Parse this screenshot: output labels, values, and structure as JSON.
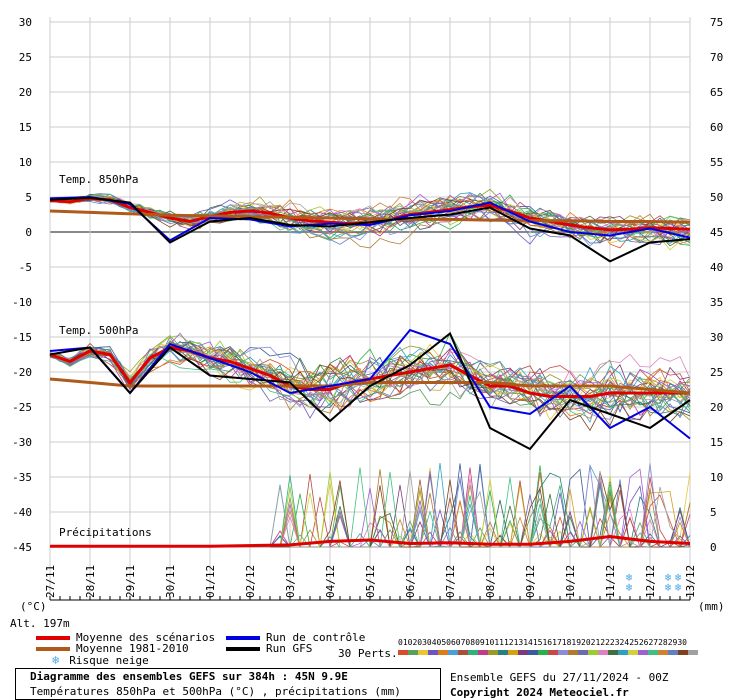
{
  "chart_data": {
    "type": "line",
    "title": "Diagramme des ensembles GEFS sur 384h : 45N 9.9E",
    "subtitle": "Températures 850hPa et 500hPa (°C) , précipitations (mm)",
    "left_axis": {
      "unit_label": "(°C)",
      "ticks": [
        30,
        25,
        20,
        15,
        10,
        5,
        0,
        -5,
        -10,
        -15,
        -20,
        -25,
        -30,
        -35,
        -40,
        -45
      ],
      "range": [
        -45,
        30
      ]
    },
    "right_axis": {
      "unit_label": "(mm)",
      "ticks": [
        75,
        70,
        65,
        60,
        55,
        50,
        45,
        40,
        35,
        30,
        25,
        20,
        15,
        10,
        5,
        0
      ],
      "range": [
        0,
        75
      ]
    },
    "x_ticks": [
      "27/11",
      "28/11",
      "29/11",
      "30/11",
      "01/12",
      "02/12",
      "03/12",
      "04/12",
      "05/12",
      "06/12",
      "07/12",
      "08/12",
      "09/12",
      "10/12",
      "11/12",
      "12/12",
      "13/12"
    ],
    "altitude_label": "Alt. 197m",
    "panel_labels": [
      "Temp. 850hPa",
      "Temp. 500hPa",
      "Précipitations"
    ],
    "series": [
      {
        "name": "Moyenne des scénarios",
        "panel": "850hPa",
        "color": "#e00000",
        "x": [
          0,
          0.5,
          1,
          1.5,
          2,
          2.5,
          3,
          3.5,
          4,
          4.5,
          5,
          5.5,
          6,
          6.5,
          7,
          7.5,
          8,
          8.5,
          9,
          9.5,
          10,
          10.5,
          11,
          11.5,
          12,
          12.5,
          13,
          13.5,
          14,
          14.5,
          15,
          15.5,
          16
        ],
        "values": [
          4.5,
          4.3,
          4.8,
          4.6,
          3.5,
          2.8,
          2.0,
          1.5,
          2.2,
          2.8,
          3.0,
          2.7,
          2.0,
          1.6,
          1.4,
          1.2,
          1.3,
          1.8,
          2.5,
          2.8,
          3.2,
          3.6,
          3.8,
          3.0,
          2.0,
          1.5,
          1.0,
          0.6,
          0.3,
          0.4,
          0.6,
          0.5,
          0.4
        ]
      },
      {
        "name": "Moyenne 1981-2010",
        "panel": "850hPa",
        "color": "#b05a1a",
        "x": [
          0,
          1,
          2,
          3,
          4,
          5,
          6,
          7,
          8,
          9,
          10,
          11,
          12,
          13,
          14,
          15,
          16
        ],
        "values": [
          3.0,
          2.8,
          2.6,
          2.4,
          2.3,
          2.2,
          2.1,
          2.0,
          1.9,
          1.8,
          1.8,
          1.7,
          1.6,
          1.6,
          1.5,
          1.5,
          1.4
        ]
      },
      {
        "name": "Run de contrôle",
        "panel": "850hPa",
        "color": "#0000e0",
        "x": [
          0,
          1,
          2,
          3,
          4,
          5,
          6,
          7,
          8,
          9,
          10,
          11,
          12,
          13,
          14,
          15,
          16
        ],
        "values": [
          4.8,
          5.0,
          4.0,
          -1.2,
          2.0,
          1.8,
          0.8,
          1.2,
          1.0,
          2.4,
          3.0,
          4.2,
          1.5,
          0.0,
          -0.5,
          0.5,
          -0.8
        ]
      },
      {
        "name": "Run GFS",
        "panel": "850hPa",
        "color": "#000000",
        "x": [
          0,
          1,
          2,
          3,
          4,
          5,
          6,
          7,
          8,
          9,
          10,
          11,
          12,
          13,
          14,
          15,
          16
        ],
        "values": [
          4.6,
          4.9,
          4.2,
          -1.5,
          1.5,
          2.0,
          1.0,
          0.8,
          1.4,
          2.0,
          2.5,
          3.5,
          0.5,
          -0.5,
          -4.2,
          -1.5,
          -1.0
        ]
      },
      {
        "name": "Moyenne des scénarios",
        "panel": "500hPa",
        "color": "#e00000",
        "x": [
          0,
          0.5,
          1,
          1.5,
          2,
          2.5,
          3,
          3.5,
          4,
          4.5,
          5,
          5.5,
          6,
          6.5,
          7,
          7.5,
          8,
          8.5,
          9,
          9.5,
          10,
          10.5,
          11,
          11.5,
          12,
          12.5,
          13,
          13.5,
          14,
          14.5,
          15,
          15.5,
          16
        ],
        "values": [
          -17.5,
          -18.5,
          -17.0,
          -17.5,
          -21.5,
          -18.0,
          -16.5,
          -17.0,
          -18.0,
          -18.5,
          -19.5,
          -20.5,
          -22.0,
          -22.5,
          -22.5,
          -21.5,
          -21.0,
          -20.5,
          -20.0,
          -19.5,
          -19.0,
          -20.5,
          -22.0,
          -22.0,
          -23.0,
          -23.5,
          -23.5,
          -23.5,
          -23.0,
          -23.0,
          -23.0,
          -23.0,
          -23.0
        ]
      },
      {
        "name": "Moyenne 1981-2010",
        "panel": "500hPa",
        "color": "#b05a1a",
        "x": [
          0,
          1,
          2,
          3,
          4,
          5,
          6,
          7,
          8,
          9,
          10,
          11,
          12,
          13,
          14,
          15,
          16
        ],
        "values": [
          -21.0,
          -21.5,
          -22.0,
          -22.0,
          -22.0,
          -22.0,
          -22.0,
          -22.0,
          -21.5,
          -21.5,
          -21.5,
          -21.5,
          -22.0,
          -22.0,
          -22.0,
          -22.5,
          -23.0
        ]
      },
      {
        "name": "Run de contrôle",
        "panel": "500hPa",
        "color": "#0000e0",
        "x": [
          0,
          1,
          2,
          3,
          4,
          5,
          6,
          7,
          8,
          9,
          10,
          11,
          12,
          13,
          14,
          15,
          16
        ],
        "values": [
          -17.0,
          -16.5,
          -23.0,
          -16.0,
          -18.0,
          -20.0,
          -23.0,
          -22.0,
          -21.0,
          -14.0,
          -16.0,
          -25.0,
          -26.0,
          -22.0,
          -28.0,
          -25.0,
          -29.5
        ]
      },
      {
        "name": "Run GFS",
        "panel": "500hPa",
        "color": "#000000",
        "x": [
          0,
          1,
          2,
          3,
          4,
          5,
          6,
          7,
          8,
          9,
          10,
          11,
          12,
          13,
          14,
          15,
          16
        ],
        "values": [
          -17.5,
          -16.5,
          -23.0,
          -16.5,
          -20.5,
          -21.0,
          -21.5,
          -27.0,
          -22.0,
          -19.0,
          -14.5,
          -28.0,
          -31.0,
          -24.0,
          -26.0,
          -28.0,
          -24.0
        ]
      },
      {
        "name": "Moyenne des scénarios",
        "panel": "precip",
        "color": "#e00000",
        "x": [
          0,
          2,
          4,
          6,
          7,
          8,
          9,
          10,
          11,
          12,
          13,
          14,
          15,
          16
        ],
        "values": [
          0.1,
          0.1,
          0.1,
          0.3,
          0.8,
          1.0,
          0.5,
          0.6,
          0.4,
          0.4,
          0.8,
          1.5,
          0.8,
          0.5
        ]
      }
    ],
    "perturbation_label": "30 Perts.",
    "perturbation_numbers": [
      "01",
      "02",
      "03",
      "04",
      "05",
      "06",
      "07",
      "08",
      "09",
      "10",
      "11",
      "12",
      "13",
      "14",
      "15",
      "16",
      "17",
      "18",
      "19",
      "20",
      "21",
      "22",
      "23",
      "24",
      "25",
      "26",
      "27",
      "28",
      "29",
      "30"
    ],
    "perturbation_colors": [
      "#d94c2b",
      "#5aa05a",
      "#e8c531",
      "#6e55c2",
      "#e07b1a",
      "#4a9fd9",
      "#a84f3a",
      "#31b07a",
      "#c23a8a",
      "#9a9a28",
      "#2a7f7f",
      "#d4a017",
      "#7a3b7a",
      "#3b5b9e",
      "#2ab04a",
      "#c84848",
      "#8c8cd8",
      "#b07a31",
      "#6b6bb0",
      "#9acd32",
      "#e080c0",
      "#407040",
      "#30a0c0",
      "#d0d040",
      "#a060d0",
      "#40c080",
      "#d08030",
      "#6080c0",
      "#804020",
      "#a0a0a0"
    ],
    "legend": [
      {
        "label": "Moyenne des scénarios",
        "color": "#e00000"
      },
      {
        "label": "Moyenne 1981-2010",
        "color": "#b05a1a"
      },
      {
        "label": "Risque neige",
        "icon": "snowflake-icon"
      },
      {
        "label": "Run de contrôle",
        "color": "#0000e0"
      },
      {
        "label": "Run GFS",
        "color": "#000000"
      }
    ],
    "footer": {
      "run_info": "Ensemble GEFS du 27/11/2024 - 00Z",
      "copyright": "Copyright 2024 Meteociel.fr"
    }
  }
}
